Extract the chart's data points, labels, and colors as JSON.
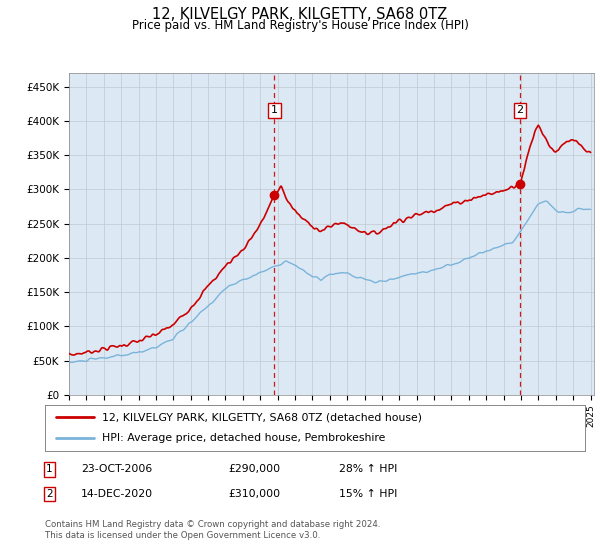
{
  "title": "12, KILVELGY PARK, KILGETTY, SA68 0TZ",
  "subtitle": "Price paid vs. HM Land Registry's House Price Index (HPI)",
  "plot_bg_color": "#dce9f5",
  "ylim": [
    0,
    470000
  ],
  "yticks": [
    0,
    50000,
    100000,
    150000,
    200000,
    250000,
    300000,
    350000,
    400000,
    450000
  ],
  "ytick_labels": [
    "£0",
    "£50K",
    "£100K",
    "£150K",
    "£200K",
    "£250K",
    "£300K",
    "£350K",
    "£400K",
    "£450K"
  ],
  "sale1_date": 2006.81,
  "sale1_price": 290000,
  "sale2_date": 2020.95,
  "sale2_price": 310000,
  "legend_entry1": "12, KILVELGY PARK, KILGETTY, SA68 0TZ (detached house)",
  "legend_entry2": "HPI: Average price, detached house, Pembrokeshire",
  "annotation1": [
    "1",
    "23-OCT-2006",
    "£290,000",
    "28% ↑ HPI"
  ],
  "annotation2": [
    "2",
    "14-DEC-2020",
    "£310,000",
    "15% ↑ HPI"
  ],
  "footer": "Contains HM Land Registry data © Crown copyright and database right 2024.\nThis data is licensed under the Open Government Licence v3.0.",
  "hpi_color": "#7ab3d9",
  "price_color": "#cc0000",
  "dashed_line_color": "#cc0000",
  "marker_box_color": "#cc0000"
}
